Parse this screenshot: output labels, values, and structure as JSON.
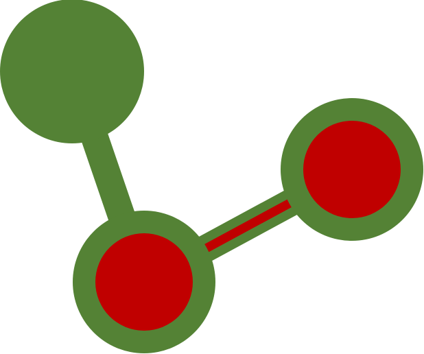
{
  "graph": {
    "nodes": [
      {
        "id": "node-1",
        "style": "solid"
      },
      {
        "id": "node-2",
        "style": "ringed"
      },
      {
        "id": "node-3",
        "style": "ringed"
      }
    ],
    "edges": [
      {
        "id": "edge-1",
        "from": "node-1",
        "to": "node-2",
        "style": "plain"
      },
      {
        "id": "edge-2",
        "from": "node-2",
        "to": "node-3",
        "style": "highlighted"
      }
    ]
  },
  "colors": {
    "background": "#ffffff",
    "green": "#548235",
    "red": "#c00000"
  }
}
